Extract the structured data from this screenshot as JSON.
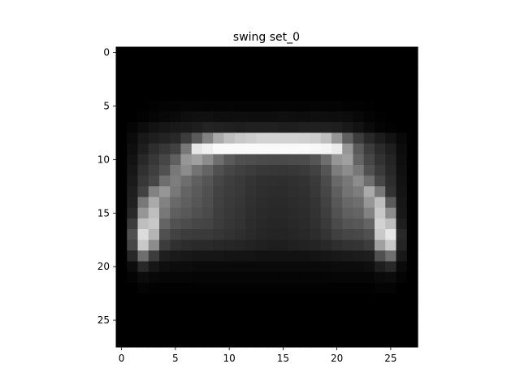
{
  "chart_data": {
    "type": "heatmap",
    "title": "swing set_0",
    "xlabel": "",
    "ylabel": "",
    "colormap": "gray",
    "value_range": [
      0,
      255
    ],
    "xlim": [
      -0.5,
      27.5
    ],
    "ylim": [
      27.5,
      -0.5
    ],
    "x_ticks": [
      0,
      5,
      10,
      15,
      20,
      25
    ],
    "y_ticks": [
      0,
      5,
      10,
      15,
      20,
      25
    ],
    "grid": false,
    "legend": "none",
    "rows": [
      [
        0,
        0,
        0,
        0,
        0,
        0,
        0,
        0,
        0,
        0,
        0,
        0,
        0,
        0,
        0,
        0,
        0,
        0,
        0,
        0,
        0,
        0,
        0,
        0,
        0,
        0,
        0,
        0
      ],
      [
        0,
        0,
        0,
        0,
        0,
        0,
        0,
        0,
        0,
        0,
        0,
        0,
        0,
        0,
        0,
        0,
        0,
        0,
        0,
        0,
        0,
        0,
        0,
        0,
        0,
        0,
        0,
        0
      ],
      [
        0,
        0,
        0,
        0,
        0,
        0,
        0,
        0,
        0,
        0,
        0,
        0,
        0,
        0,
        0,
        0,
        0,
        0,
        0,
        0,
        0,
        0,
        0,
        0,
        0,
        0,
        0,
        0
      ],
      [
        0,
        0,
        0,
        0,
        0,
        0,
        0,
        0,
        0,
        0,
        0,
        0,
        0,
        0,
        0,
        0,
        0,
        0,
        0,
        0,
        0,
        0,
        0,
        0,
        0,
        0,
        0,
        0
      ],
      [
        0,
        0,
        0,
        0,
        0,
        0,
        0,
        0,
        0,
        0,
        0,
        0,
        0,
        0,
        0,
        0,
        0,
        0,
        0,
        0,
        0,
        0,
        0,
        0,
        0,
        0,
        0,
        0
      ],
      [
        0,
        0,
        0,
        2,
        4,
        4,
        5,
        5,
        4,
        4,
        5,
        4,
        4,
        4,
        4,
        4,
        4,
        4,
        5,
        4,
        4,
        3,
        2,
        1,
        0,
        0,
        0,
        0
      ],
      [
        0,
        0,
        2,
        5,
        8,
        10,
        14,
        16,
        16,
        14,
        14,
        14,
        14,
        14,
        14,
        15,
        14,
        14,
        15,
        14,
        14,
        12,
        8,
        4,
        2,
        0,
        0,
        0
      ],
      [
        0,
        5,
        12,
        18,
        22,
        25,
        26,
        30,
        35,
        34,
        32,
        30,
        32,
        32,
        32,
        30,
        30,
        32,
        32,
        32,
        30,
        24,
        18,
        10,
        4,
        2,
        0,
        0
      ],
      [
        0,
        10,
        24,
        30,
        35,
        40,
        60,
        90,
        130,
        170,
        190,
        200,
        205,
        210,
        210,
        210,
        210,
        208,
        205,
        190,
        150,
        95,
        60,
        40,
        28,
        18,
        8,
        0
      ],
      [
        0,
        14,
        30,
        45,
        55,
        65,
        120,
        230,
        240,
        250,
        250,
        250,
        250,
        250,
        250,
        250,
        250,
        250,
        248,
        245,
        235,
        150,
        90,
        60,
        42,
        30,
        12,
        0
      ],
      [
        0,
        18,
        40,
        55,
        70,
        95,
        150,
        160,
        140,
        110,
        90,
        80,
        78,
        75,
        74,
        74,
        75,
        76,
        85,
        110,
        150,
        160,
        100,
        70,
        50,
        36,
        14,
        0
      ],
      [
        0,
        22,
        48,
        62,
        80,
        120,
        140,
        115,
        100,
        80,
        70,
        64,
        60,
        56,
        55,
        54,
        55,
        58,
        66,
        85,
        125,
        140,
        120,
        80,
        58,
        40,
        16,
        0
      ],
      [
        0,
        26,
        55,
        70,
        110,
        125,
        110,
        95,
        85,
        70,
        62,
        57,
        52,
        48,
        47,
        46,
        48,
        50,
        58,
        75,
        105,
        120,
        140,
        110,
        70,
        45,
        18,
        0
      ],
      [
        0,
        30,
        65,
        130,
        150,
        120,
        100,
        90,
        80,
        66,
        60,
        56,
        50,
        46,
        44,
        44,
        46,
        48,
        56,
        70,
        95,
        115,
        125,
        170,
        120,
        50,
        20,
        0
      ],
      [
        0,
        32,
        120,
        170,
        130,
        105,
        95,
        86,
        78,
        64,
        58,
        54,
        48,
        44,
        42,
        42,
        44,
        46,
        52,
        66,
        88,
        104,
        110,
        150,
        190,
        90,
        22,
        0
      ],
      [
        0,
        40,
        150,
        190,
        120,
        95,
        88,
        80,
        74,
        62,
        56,
        52,
        46,
        42,
        40,
        40,
        42,
        44,
        50,
        62,
        82,
        96,
        100,
        130,
        200,
        140,
        24,
        0
      ],
      [
        0,
        60,
        190,
        200,
        100,
        82,
        76,
        70,
        68,
        60,
        54,
        50,
        44,
        40,
        38,
        38,
        40,
        42,
        48,
        58,
        74,
        84,
        88,
        100,
        210,
        190,
        30,
        0
      ],
      [
        0,
        80,
        220,
        180,
        80,
        66,
        60,
        58,
        58,
        54,
        50,
        46,
        42,
        38,
        36,
        36,
        38,
        40,
        44,
        52,
        64,
        70,
        72,
        80,
        200,
        230,
        40,
        0
      ],
      [
        0,
        70,
        200,
        140,
        60,
        48,
        44,
        42,
        42,
        40,
        38,
        36,
        34,
        32,
        30,
        30,
        32,
        34,
        36,
        40,
        46,
        50,
        52,
        60,
        160,
        200,
        36,
        0
      ],
      [
        0,
        40,
        110,
        60,
        30,
        26,
        24,
        22,
        22,
        22,
        20,
        20,
        20,
        18,
        18,
        18,
        18,
        18,
        20,
        22,
        24,
        26,
        28,
        30,
        80,
        110,
        24,
        0
      ],
      [
        0,
        12,
        40,
        22,
        14,
        12,
        12,
        10,
        10,
        10,
        10,
        10,
        10,
        10,
        10,
        10,
        10,
        10,
        10,
        10,
        12,
        12,
        12,
        14,
        30,
        40,
        10,
        0
      ],
      [
        0,
        4,
        12,
        8,
        6,
        6,
        6,
        5,
        5,
        5,
        5,
        5,
        5,
        5,
        5,
        5,
        5,
        5,
        5,
        5,
        6,
        6,
        6,
        6,
        10,
        12,
        4,
        0
      ],
      [
        0,
        0,
        4,
        2,
        2,
        2,
        2,
        2,
        2,
        2,
        2,
        2,
        2,
        2,
        2,
        2,
        2,
        2,
        2,
        2,
        2,
        2,
        2,
        2,
        4,
        4,
        0,
        0
      ],
      [
        0,
        0,
        0,
        0,
        0,
        0,
        0,
        0,
        0,
        0,
        0,
        0,
        0,
        0,
        0,
        0,
        0,
        0,
        0,
        0,
        0,
        0,
        0,
        0,
        0,
        0,
        0,
        0
      ],
      [
        0,
        0,
        0,
        0,
        0,
        0,
        0,
        0,
        0,
        0,
        0,
        0,
        0,
        0,
        0,
        0,
        0,
        0,
        0,
        0,
        0,
        0,
        0,
        0,
        0,
        0,
        0,
        0
      ],
      [
        0,
        0,
        0,
        0,
        0,
        0,
        0,
        0,
        0,
        0,
        0,
        0,
        0,
        0,
        0,
        0,
        0,
        0,
        0,
        0,
        0,
        0,
        0,
        0,
        0,
        0,
        0,
        0
      ],
      [
        0,
        0,
        0,
        0,
        0,
        0,
        0,
        0,
        0,
        0,
        0,
        0,
        0,
        0,
        0,
        0,
        0,
        0,
        0,
        0,
        0,
        0,
        0,
        0,
        0,
        0,
        0,
        0
      ],
      [
        0,
        0,
        0,
        0,
        0,
        0,
        0,
        0,
        0,
        0,
        0,
        0,
        0,
        0,
        0,
        0,
        0,
        0,
        0,
        0,
        0,
        0,
        0,
        0,
        0,
        0,
        0,
        0
      ]
    ]
  }
}
